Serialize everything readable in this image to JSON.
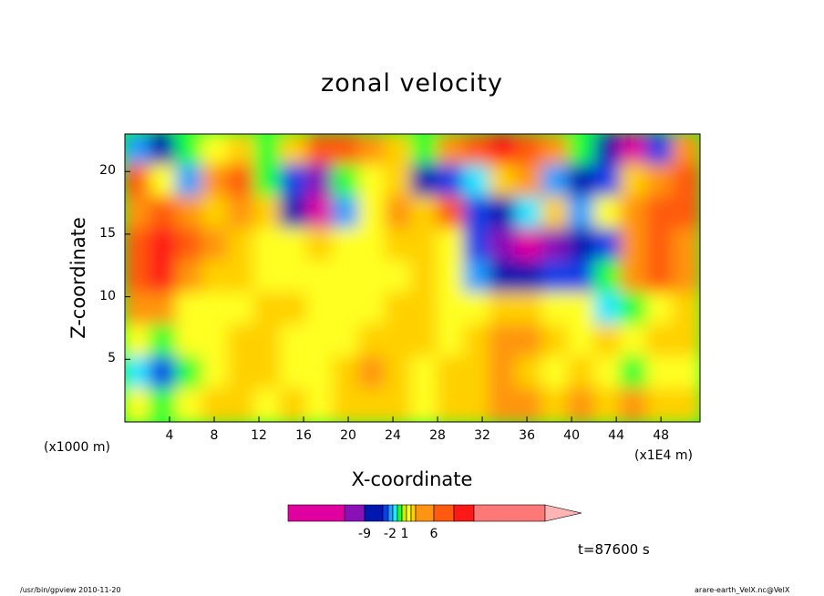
{
  "chart_data": {
    "type": "heatmap",
    "title": "zonal velocity",
    "xlabel": "X-coordinate",
    "ylabel": "Z-coordinate",
    "x_unit": "(x1000 m)",
    "x_unit_right": "(x1E4 m)",
    "xlim": [
      0,
      51.5
    ],
    "ylim": [
      0,
      23
    ],
    "x_ticks": [
      4,
      8,
      12,
      16,
      20,
      24,
      28,
      32,
      36,
      40,
      44,
      48
    ],
    "y_ticks": [
      5,
      10,
      15,
      20
    ],
    "colorbar": {
      "colors": [
        "#e000a0",
        "#8a10b8",
        "#0018b0",
        "#0a40e8",
        "#1ea0ff",
        "#20e8ff",
        "#18ff30",
        "#c8f000",
        "#ffff20",
        "#ffd000",
        "#ff9410",
        "#ff5a10",
        "#ff1818",
        "#ff7878",
        "#ffb4b4"
      ],
      "labels": [
        "-9",
        "-2",
        "1",
        "6"
      ]
    },
    "field": [
      [
        -2,
        -5,
        0,
        1,
        2,
        0,
        2,
        5,
        6,
        4,
        2,
        0,
        3,
        5,
        7,
        6,
        4,
        0,
        -5,
        -9,
        -4,
        3
      ],
      [
        6,
        1,
        -2,
        4,
        5,
        0,
        -3,
        -7,
        0,
        1,
        2,
        -5,
        -3,
        -1,
        2,
        4,
        -2,
        -6,
        -3,
        2,
        4,
        5
      ],
      [
        4,
        5,
        3,
        2,
        4,
        2,
        -5,
        -9,
        -2,
        1,
        3,
        2,
        6,
        -4,
        -6,
        -1,
        2,
        -2,
        1,
        4,
        6,
        5
      ],
      [
        6,
        8,
        5,
        3,
        2,
        1,
        1,
        2,
        1,
        1,
        2,
        2,
        1,
        -3,
        -8,
        -9,
        -7,
        -5,
        -4,
        3,
        5,
        3
      ],
      [
        6,
        8,
        4,
        2,
        2,
        1,
        1,
        1,
        1,
        1,
        1,
        2,
        1,
        -2,
        -5,
        -6,
        -4,
        -3,
        0,
        4,
        5,
        4
      ],
      [
        4,
        3,
        1,
        1,
        1,
        2,
        2,
        1,
        1,
        1,
        2,
        2,
        1,
        1,
        2,
        2,
        1,
        1,
        -1,
        0,
        1,
        2
      ],
      [
        1,
        0,
        1,
        1,
        2,
        2,
        1,
        1,
        1,
        2,
        2,
        2,
        1,
        2,
        3,
        4,
        2,
        1,
        2,
        1,
        2,
        2
      ],
      [
        -1,
        -3,
        0,
        1,
        2,
        2,
        1,
        1,
        2,
        3,
        2,
        1,
        2,
        2,
        3,
        2,
        1,
        2,
        1,
        0,
        1,
        1
      ],
      [
        1,
        0,
        1,
        2,
        2,
        1,
        2,
        1,
        2,
        2,
        2,
        1,
        2,
        2,
        3,
        3,
        2,
        3,
        2,
        3,
        2,
        2
      ]
    ]
  },
  "timestamp": "t=87600 s",
  "footer_left": "/usr/bin/gpview   2010-11-20",
  "footer_right": "arare-earth_VelX.nc@VelX"
}
